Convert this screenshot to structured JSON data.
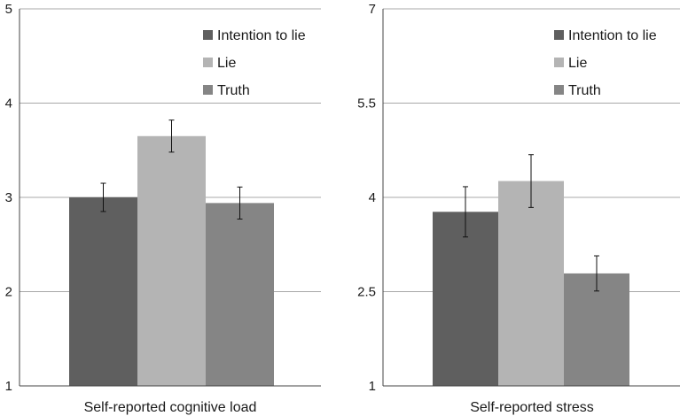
{
  "chart_data": [
    {
      "type": "bar",
      "title": "",
      "xlabel": "Self-reported cognitive load",
      "ylabel": "",
      "ylim": [
        1,
        5
      ],
      "yticks": [
        1,
        2,
        3,
        4,
        5
      ],
      "ytick_labels": [
        "1",
        "2",
        "3",
        "4",
        "5"
      ],
      "grid": true,
      "legend_position": "top-right",
      "series": [
        {
          "name": "Intention to lie",
          "value": 3.0,
          "error": 0.15,
          "color": "#5f5f5f"
        },
        {
          "name": "Lie",
          "value": 3.65,
          "error": 0.17,
          "color": "#b4b4b4"
        },
        {
          "name": "Truth",
          "value": 2.94,
          "error": 0.17,
          "color": "#858585"
        }
      ]
    },
    {
      "type": "bar",
      "title": "",
      "xlabel": "Self-reported stress",
      "ylabel": "",
      "ylim": [
        1,
        7
      ],
      "yticks": [
        1,
        2.5,
        4,
        5.5,
        7
      ],
      "ytick_labels": [
        "1",
        "2.5",
        "4",
        "5.5",
        "7"
      ],
      "grid": true,
      "legend_position": "top-right",
      "series": [
        {
          "name": "Intention to lie",
          "value": 3.77,
          "error": 0.4,
          "color": "#5f5f5f"
        },
        {
          "name": "Lie",
          "value": 4.26,
          "error": 0.42,
          "color": "#b4b4b4"
        },
        {
          "name": "Truth",
          "value": 2.79,
          "error": 0.28,
          "color": "#858585"
        }
      ]
    }
  ]
}
